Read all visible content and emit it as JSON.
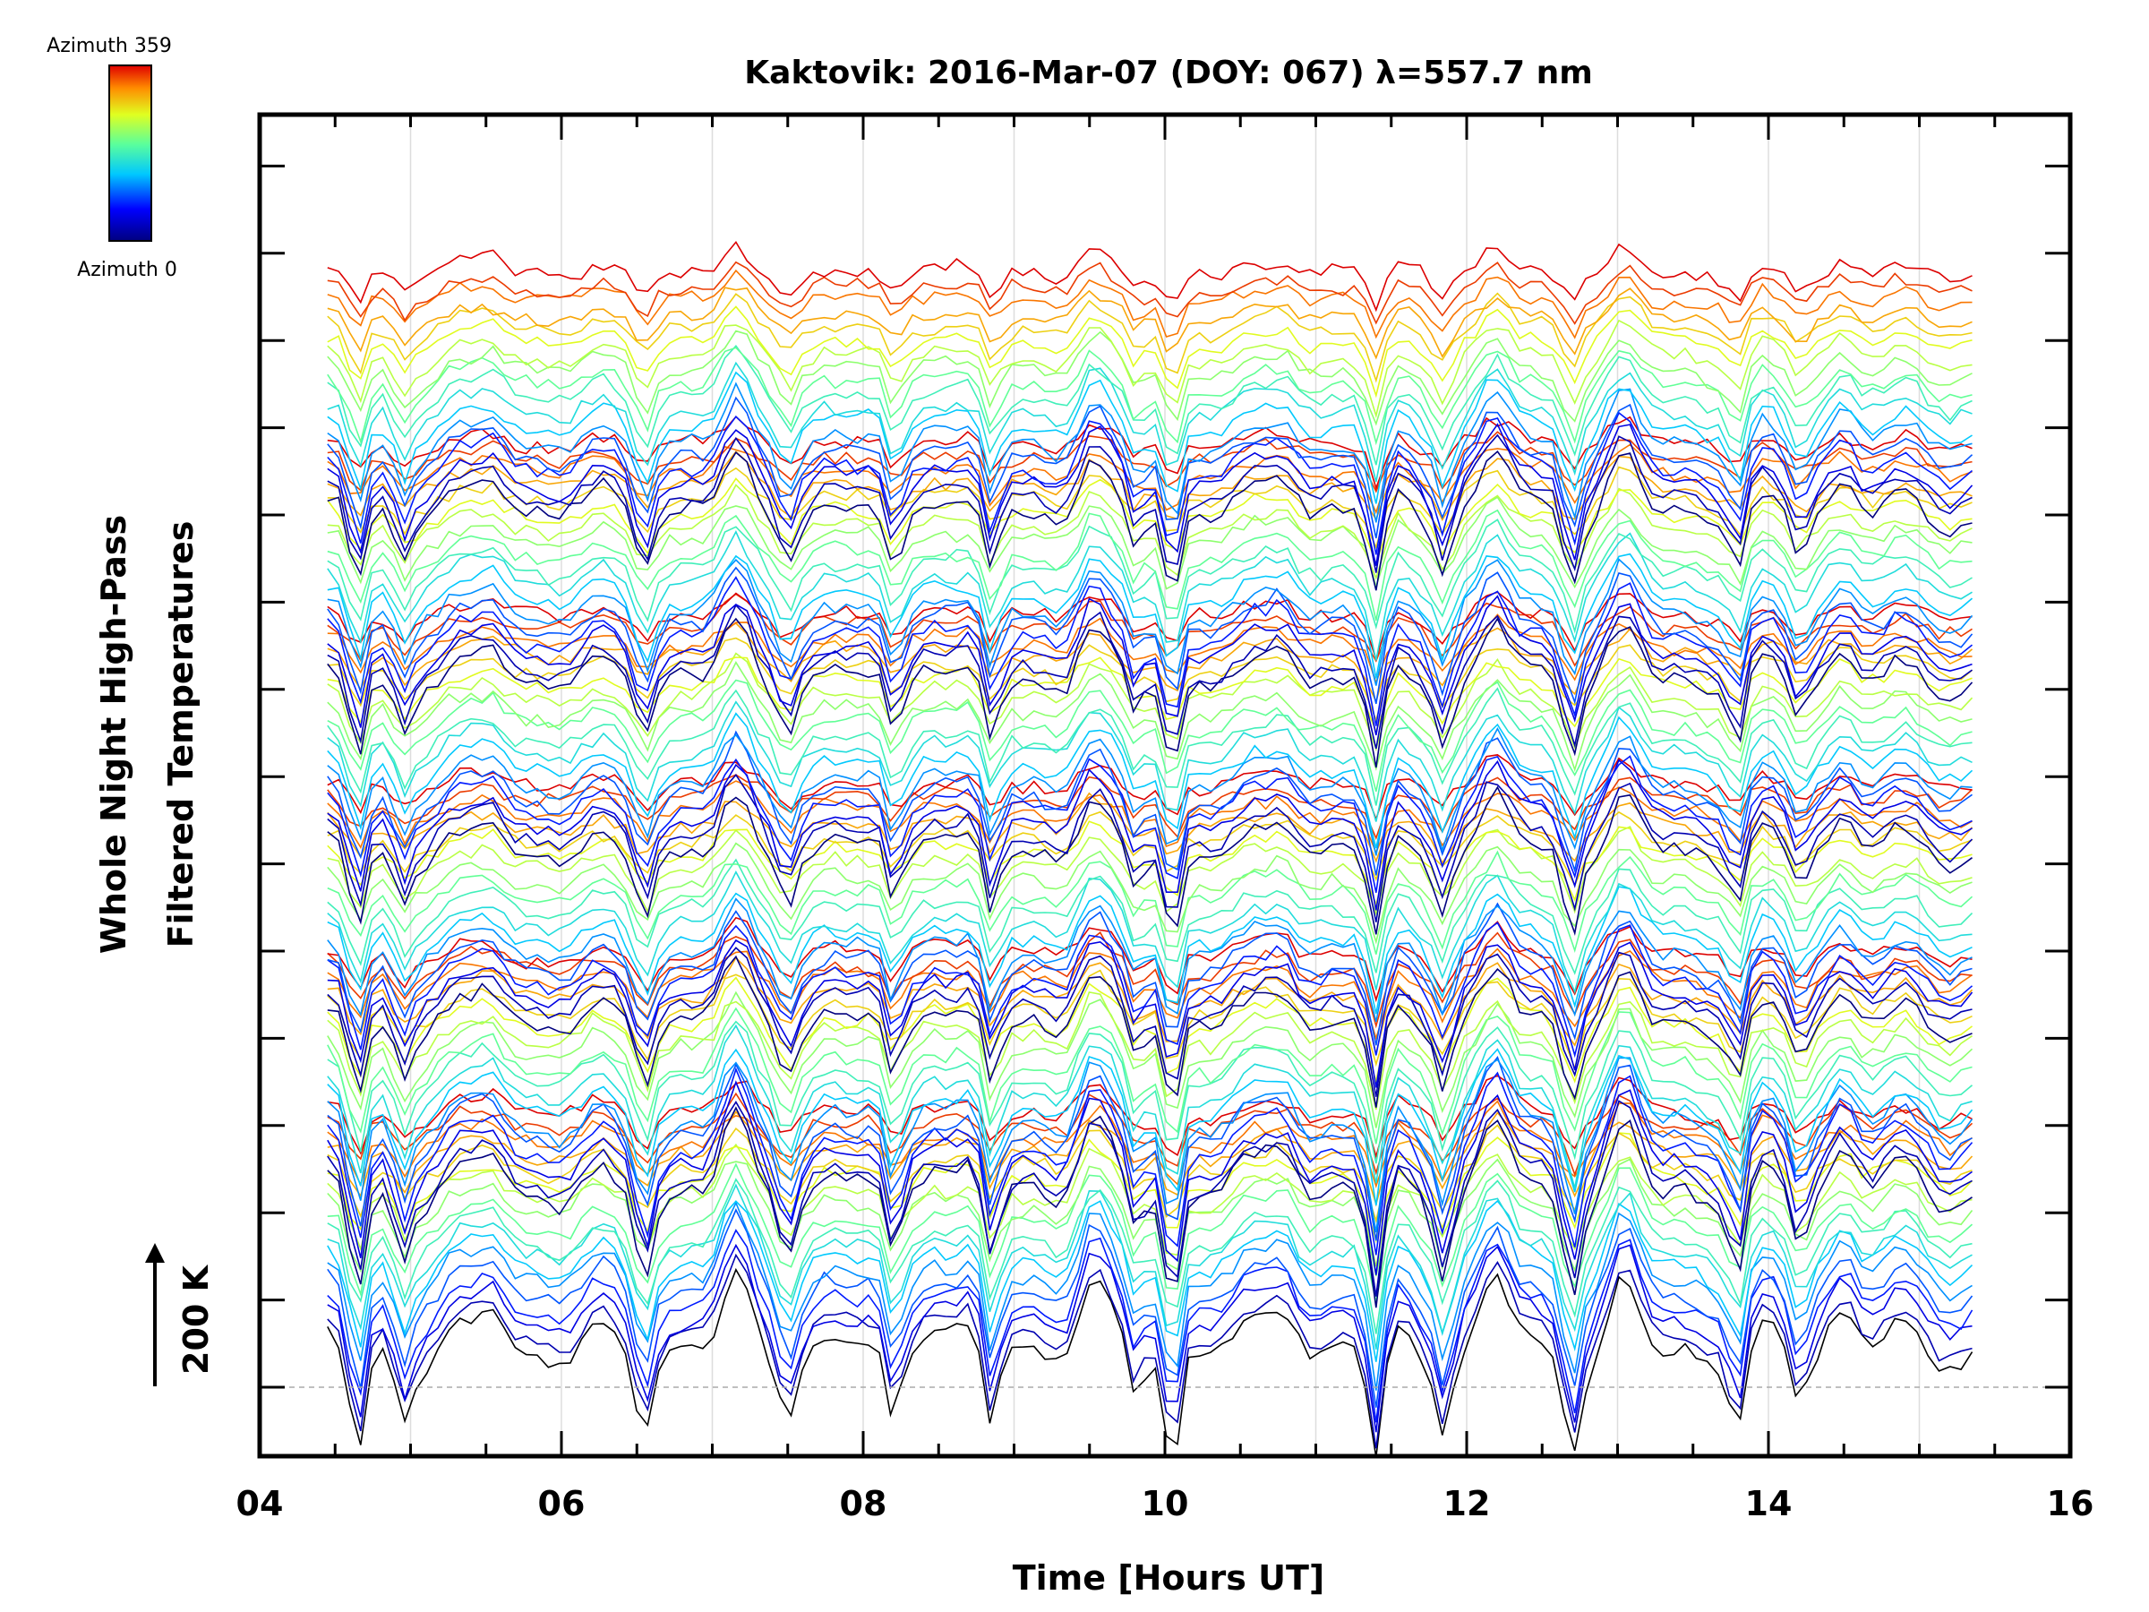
{
  "chart_data": {
    "type": "line",
    "title": "Kaktovik: 2016-Mar-07 (DOY: 067) λ=557.7 nm",
    "xlabel": "Time [Hours UT]",
    "ylabel_line1": "Whole Night High-Pass",
    "ylabel_line2": "Filtered Temperatures",
    "scale_bar_label": "200 K",
    "xlim": [
      4,
      16
    ],
    "x_data_range": [
      4.45,
      15.35
    ],
    "x_ticks": [
      "04",
      "06",
      "08",
      "10",
      "12",
      "14",
      "16"
    ],
    "grid": "vertical dotted at every hour",
    "colorbar": {
      "top_label": "Azimuth 359",
      "bottom_label": "Azimuth 0",
      "colormap": "rainbow (blue-cyan-green-yellow-red)",
      "placement": "top-left"
    },
    "series_groups": 6,
    "series_per_group": 18,
    "series_description": "Stacked high-pass filtered temperature traces, one per azimuth, offset vertically and colored by azimuth",
    "colors": {
      "background": "#ffffff",
      "axis": "#000000",
      "grid": "#dddddd",
      "baseline": "#aaaaaa"
    }
  }
}
